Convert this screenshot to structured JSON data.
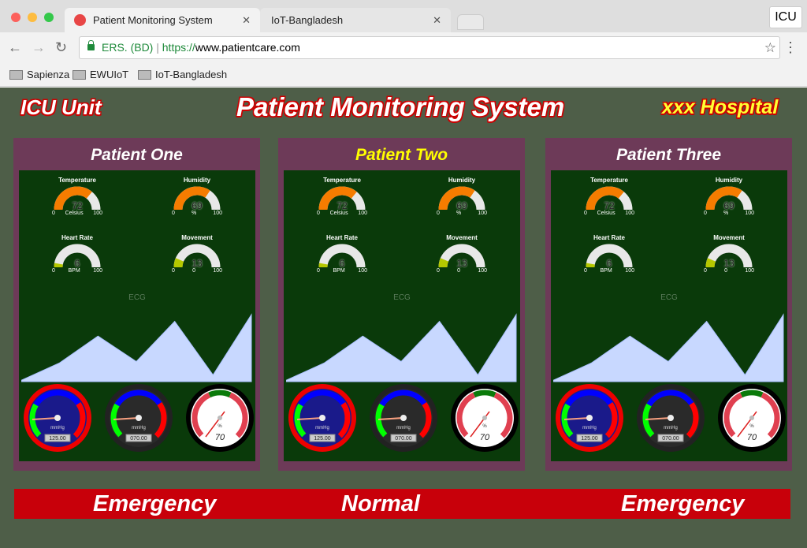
{
  "browser": {
    "tabs": [
      {
        "label": "Patient Monitoring System",
        "active": true
      },
      {
        "label": "IoT-Bangladesh",
        "active": false
      }
    ],
    "profile_button": "ICU",
    "url": {
      "site": "ERS. (BD)",
      "scheme": "https://",
      "host": "www.patientcare.com"
    },
    "bookmarks": [
      "Sapienza",
      "EWUIoT",
      "IoT-Bangladesh"
    ]
  },
  "header": {
    "left": "ICU Unit",
    "title": "Patient Monitoring System",
    "right": "xxx Hospital"
  },
  "colors": {
    "background": "#4e5e48",
    "panel": "#6d3a58",
    "panel_inner": "#0a3a0a",
    "gauge_high": "#f57c00",
    "gauge_low": "#b5c800",
    "ecg_fill": "#c8d8ff",
    "status_bar": "#c8000a"
  },
  "patients": [
    {
      "name": "Patient One",
      "name_color": "#ffffff",
      "status": "Emergency",
      "gauges": [
        {
          "label": "Temperature",
          "value": 72,
          "unit": "Celsius",
          "min": 0,
          "max": 100
        },
        {
          "label": "Humidity",
          "value": 69,
          "unit": "%",
          "min": 0,
          "max": 100
        },
        {
          "label": "Heart Rate",
          "value": 6,
          "unit": "BPM",
          "min": 0,
          "max": 100
        },
        {
          "label": "Movement",
          "value": 13,
          "unit": "0",
          "min": 0,
          "max": 100
        }
      ],
      "ecg_label": "ECG",
      "ecg": [
        2,
        28,
        68,
        30,
        90,
        10,
        100
      ],
      "dials": [
        {
          "unit": "mmHg",
          "readout": "125.00"
        },
        {
          "unit": "mmHg",
          "readout": "070.00"
        },
        {
          "unit": "%",
          "readout": "70"
        }
      ]
    },
    {
      "name": "Patient Two",
      "name_color": "#ffff00",
      "status": "Normal",
      "gauges": [
        {
          "label": "Temperature",
          "value": 72,
          "unit": "Celsius",
          "min": 0,
          "max": 100
        },
        {
          "label": "Humidity",
          "value": 69,
          "unit": "%",
          "min": 0,
          "max": 100
        },
        {
          "label": "Heart Rate",
          "value": 6,
          "unit": "BPM",
          "min": 0,
          "max": 100
        },
        {
          "label": "Movement",
          "value": 13,
          "unit": "0",
          "min": 0,
          "max": 100
        }
      ],
      "ecg_label": "ECG",
      "ecg": [
        2,
        28,
        68,
        30,
        90,
        10,
        100
      ],
      "dials": [
        {
          "unit": "mmHg",
          "readout": "125.00"
        },
        {
          "unit": "mmHg",
          "readout": "070.00"
        },
        {
          "unit": "%",
          "readout": "70"
        }
      ]
    },
    {
      "name": "Patient Three",
      "name_color": "#ffffff",
      "status": "Emergency",
      "gauges": [
        {
          "label": "Temperature",
          "value": 72,
          "unit": "Celsius",
          "min": 0,
          "max": 100
        },
        {
          "label": "Humidity",
          "value": 69,
          "unit": "%",
          "min": 0,
          "max": 100
        },
        {
          "label": "Heart Rate",
          "value": 6,
          "unit": "BPM",
          "min": 0,
          "max": 100
        },
        {
          "label": "Movement",
          "value": 13,
          "unit": "0",
          "min": 0,
          "max": 100
        }
      ],
      "ecg_label": "ECG",
      "ecg": [
        2,
        28,
        68,
        30,
        90,
        10,
        100
      ],
      "dials": [
        {
          "unit": "mmHg",
          "readout": "125.00"
        },
        {
          "unit": "mmHg",
          "readout": "070.00"
        },
        {
          "unit": "%",
          "readout": "70"
        }
      ]
    }
  ]
}
